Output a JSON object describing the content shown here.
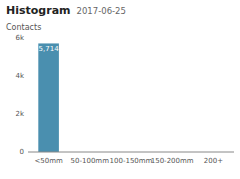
{
  "chart_data": {
    "type": "bar",
    "title": "Histogram",
    "subtitle": "2017-06-25",
    "y_label": "Contacts",
    "categories": [
      "<50mm",
      "50-100mm",
      "100-150mm",
      "150-200mm",
      "200+"
    ],
    "values": [
      5714,
      0,
      0,
      0,
      0
    ],
    "value_labels": [
      "5,714",
      null,
      null,
      null,
      null
    ],
    "data_labels": true,
    "color": "#4a8faf",
    "ylim": [
      0,
      6000
    ],
    "yticks": [
      0,
      {
        "value": 2000,
        "label": "2k"
      },
      {
        "value": 4000,
        "label": "4k"
      },
      {
        "value": 6000,
        "label": "6k"
      }
    ],
    "grid": false
  }
}
